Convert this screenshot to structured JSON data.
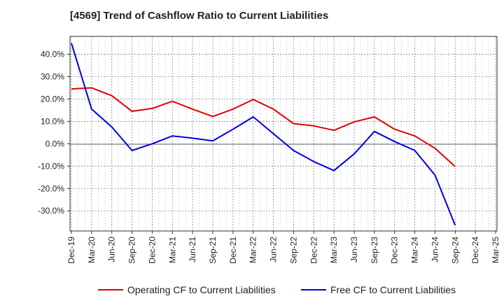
{
  "chart_data": {
    "type": "line",
    "title": "[4569]  Trend of Cashflow Ratio to Current Liabilities",
    "xlabel": "",
    "ylabel": "",
    "x": [
      "Dec-19",
      "Mar-20",
      "Jun-20",
      "Sep-20",
      "Dec-20",
      "Mar-21",
      "Jun-21",
      "Sep-21",
      "Dec-21",
      "Mar-22",
      "Jun-22",
      "Sep-22",
      "Dec-22",
      "Mar-23",
      "Jun-23",
      "Sep-23",
      "Dec-23",
      "Mar-24",
      "Jun-24",
      "Sep-24",
      "Dec-24",
      "Mar-25"
    ],
    "ylim": [
      -39,
      48
    ],
    "yticks": [
      -30,
      -20,
      -10,
      0,
      10,
      20,
      30,
      40
    ],
    "ytick_labels": [
      "-30.0%",
      "-20.0%",
      "-10.0%",
      "0.0%",
      "10.0%",
      "20.0%",
      "30.0%",
      "40.0%"
    ],
    "grid": true,
    "legend_position": "bottom",
    "series": [
      {
        "name": "Operating CF to Current Liabilities",
        "color": "#e00000",
        "values": [
          24.5,
          25.0,
          21.5,
          14.5,
          15.8,
          19.0,
          15.5,
          12.2,
          15.5,
          19.8,
          15.5,
          9.0,
          8.0,
          6.0,
          9.8,
          12.0,
          6.5,
          3.5,
          -2.0,
          -10.2,
          null,
          null
        ]
      },
      {
        "name": "Free CF to Current Liabilities",
        "color": "#0000e0",
        "values": [
          45.0,
          15.5,
          7.5,
          -3.0,
          0.0,
          3.5,
          2.5,
          1.3,
          6.5,
          12.0,
          4.5,
          -3.0,
          -8.0,
          -12.0,
          -4.5,
          5.5,
          1.0,
          -3.0,
          -14.0,
          -36.5,
          null,
          null
        ]
      }
    ]
  }
}
